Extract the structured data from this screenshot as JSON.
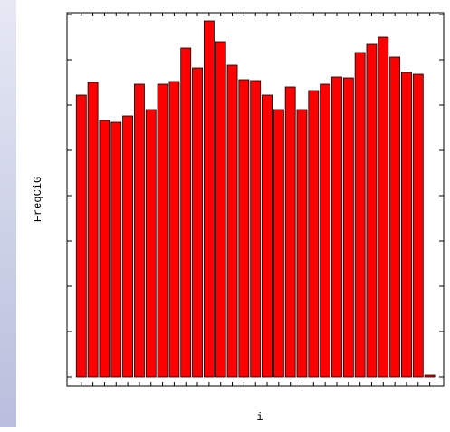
{
  "chart_data": {
    "type": "bar",
    "x": [
      1,
      2,
      3,
      4,
      5,
      6,
      7,
      8,
      9,
      10,
      11,
      12,
      13,
      14,
      15,
      16,
      17,
      18,
      19,
      20,
      21,
      22,
      23,
      24,
      25,
      26,
      27,
      28,
      29,
      30,
      31
    ],
    "values": [
      311,
      325,
      283,
      281,
      288,
      323,
      295,
      323,
      326,
      363,
      341,
      393,
      370,
      344,
      328,
      327,
      311,
      295,
      320,
      295,
      316,
      323,
      331,
      330,
      358,
      367,
      375,
      353,
      336,
      334,
      2
    ],
    "color": "#ff0000",
    "xlabel": "i",
    "ylabel": "FreqCiG",
    "xlim": [
      -0.23,
      32.2
    ],
    "ylim": [
      -10,
      402
    ],
    "xticks": [
      1,
      2,
      3,
      4,
      5,
      6,
      7,
      8,
      9,
      10,
      11,
      12,
      13,
      14,
      15,
      16,
      17,
      18,
      19,
      20,
      21,
      22,
      23,
      24,
      25,
      26,
      27,
      28,
      29,
      30,
      31
    ],
    "yticks": [
      0,
      50,
      100,
      150,
      200,
      250,
      300,
      350,
      400
    ]
  }
}
